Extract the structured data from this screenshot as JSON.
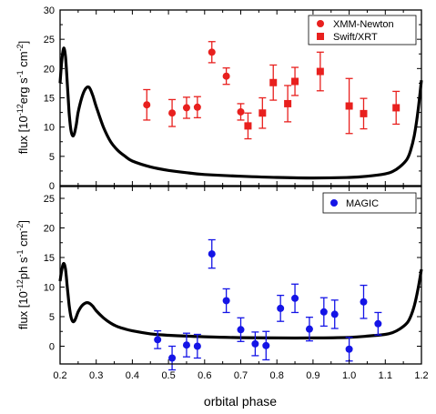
{
  "figure": {
    "x_axis": {
      "label": "orbital phase",
      "range": [
        0.2,
        1.2
      ],
      "ticks": [
        0.2,
        0.3,
        0.4,
        0.5,
        0.6,
        0.7,
        0.8,
        0.9,
        1.0,
        1.1,
        1.2
      ],
      "tick_labels": [
        "0.2",
        "0.3",
        "0.4",
        "0.5",
        "0.6",
        "0.7",
        "0.8",
        "0.9",
        "1.0",
        "1.1",
        "1.2"
      ]
    }
  },
  "chart_data": [
    {
      "type": "scatter",
      "panel": "top",
      "title": "",
      "xlabel": "orbital phase",
      "ylabel_text": "flux [10",
      "ylabel_sup": "-12",
      "ylabel_rest": "erg s",
      "ylabel_sup2": "-1",
      "ylabel_rest2": " cm",
      "ylabel_sup3": "-2",
      "ylabel_end": "]",
      "xlim": [
        0.2,
        1.2
      ],
      "ylim": [
        0,
        30
      ],
      "yticks": [
        0,
        5,
        10,
        15,
        20,
        25,
        30
      ],
      "ytick_labels": [
        "0",
        "5",
        "10",
        "15",
        "20",
        "25",
        "30"
      ],
      "legend_position": "top-right",
      "series": [
        {
          "name": "XMM-Newton",
          "marker": "circle",
          "color": "#e8201e",
          "points": [
            {
              "x": 0.44,
              "y": 13.8,
              "err": 2.6
            },
            {
              "x": 0.51,
              "y": 12.4,
              "err": 2.3
            },
            {
              "x": 0.55,
              "y": 13.3,
              "err": 1.8
            },
            {
              "x": 0.58,
              "y": 13.4,
              "err": 1.8
            },
            {
              "x": 0.62,
              "y": 22.8,
              "err": 1.8
            },
            {
              "x": 0.66,
              "y": 18.7,
              "err": 1.4
            },
            {
              "x": 0.7,
              "y": 12.6,
              "err": 1.4
            }
          ]
        },
        {
          "name": "Swift/XRT",
          "marker": "square",
          "color": "#e8201e",
          "points": [
            {
              "x": 0.72,
              "y": 10.2,
              "err": 2.2
            },
            {
              "x": 0.76,
              "y": 12.4,
              "err": 2.6
            },
            {
              "x": 0.79,
              "y": 17.6,
              "err": 3.0
            },
            {
              "x": 0.83,
              "y": 14.0,
              "err": 3.1
            },
            {
              "x": 0.85,
              "y": 17.8,
              "err": 2.4
            },
            {
              "x": 0.92,
              "y": 19.5,
              "err": 3.3
            },
            {
              "x": 1.0,
              "y": 13.6,
              "err": 4.7
            },
            {
              "x": 1.04,
              "y": 12.3,
              "err": 2.6
            },
            {
              "x": 1.13,
              "y": 13.3,
              "err": 2.8
            }
          ]
        }
      ],
      "model_curve": {
        "color": "#000000",
        "x": [
          0.2,
          0.205,
          0.21,
          0.215,
          0.22,
          0.225,
          0.23,
          0.235,
          0.24,
          0.245,
          0.25,
          0.26,
          0.27,
          0.28,
          0.29,
          0.3,
          0.32,
          0.34,
          0.36,
          0.38,
          0.4,
          0.45,
          0.5,
          0.55,
          0.6,
          0.7,
          0.8,
          0.9,
          1.0,
          1.05,
          1.1,
          1.12,
          1.14,
          1.16,
          1.17,
          1.18,
          1.19,
          1.2
        ],
        "y": [
          17.5,
          21.5,
          23.5,
          22.0,
          17.5,
          12.5,
          9.5,
          8.5,
          9.0,
          10.5,
          12.5,
          15.0,
          16.5,
          16.8,
          15.5,
          13.5,
          10.0,
          7.5,
          6.0,
          5.0,
          4.2,
          3.2,
          2.6,
          2.2,
          1.9,
          1.6,
          1.4,
          1.3,
          1.4,
          1.6,
          2.0,
          2.4,
          3.2,
          4.5,
          6.0,
          8.5,
          12.5,
          18.0
        ]
      }
    },
    {
      "type": "scatter",
      "panel": "bottom",
      "title": "",
      "xlabel": "orbital phase",
      "ylabel_text": "flux [10",
      "ylabel_sup": "-12",
      "ylabel_rest": "ph s",
      "ylabel_sup2": "-1",
      "ylabel_rest2": " cm",
      "ylabel_sup3": "-2",
      "ylabel_end": "]",
      "xlim": [
        0.2,
        1.2
      ],
      "ylim": [
        -3,
        27
      ],
      "yticks": [
        0,
        5,
        10,
        15,
        20,
        25
      ],
      "ytick_labels": [
        "0",
        "5",
        "10",
        "15",
        "20",
        "25"
      ],
      "legend_position": "top-right",
      "series": [
        {
          "name": "MAGIC",
          "marker": "circle",
          "color": "#1414e6",
          "points": [
            {
              "x": 0.47,
              "y": 1.1,
              "err": 1.5
            },
            {
              "x": 0.51,
              "y": -2.0,
              "err": 2.0
            },
            {
              "x": 0.55,
              "y": 0.2,
              "err": 2.0
            },
            {
              "x": 0.58,
              "y": 0.0,
              "err": 2.0
            },
            {
              "x": 0.62,
              "y": 15.6,
              "err": 2.4
            },
            {
              "x": 0.66,
              "y": 7.7,
              "err": 2.0
            },
            {
              "x": 0.7,
              "y": 2.8,
              "err": 2.0
            },
            {
              "x": 0.74,
              "y": 0.4,
              "err": 2.0
            },
            {
              "x": 0.77,
              "y": 0.1,
              "err": 2.4
            },
            {
              "x": 0.81,
              "y": 6.4,
              "err": 2.2
            },
            {
              "x": 0.85,
              "y": 8.1,
              "err": 2.4
            },
            {
              "x": 0.89,
              "y": 2.9,
              "err": 2.0
            },
            {
              "x": 0.93,
              "y": 5.8,
              "err": 2.4
            },
            {
              "x": 0.96,
              "y": 5.4,
              "err": 2.4
            },
            {
              "x": 1.0,
              "y": -0.5,
              "err": 2.0
            },
            {
              "x": 1.04,
              "y": 7.5,
              "err": 2.8
            },
            {
              "x": 1.08,
              "y": 3.8,
              "err": 1.9
            }
          ]
        }
      ],
      "model_curve": {
        "color": "#000000",
        "x": [
          0.2,
          0.205,
          0.21,
          0.215,
          0.22,
          0.225,
          0.23,
          0.235,
          0.24,
          0.245,
          0.25,
          0.26,
          0.27,
          0.28,
          0.29,
          0.3,
          0.32,
          0.34,
          0.36,
          0.38,
          0.4,
          0.45,
          0.5,
          0.55,
          0.6,
          0.7,
          0.8,
          0.9,
          1.0,
          1.05,
          1.1,
          1.12,
          1.14,
          1.16,
          1.17,
          1.18,
          1.19,
          1.2
        ],
        "y": [
          11.0,
          13.0,
          14.0,
          13.0,
          10.0,
          7.0,
          5.0,
          4.2,
          4.3,
          5.0,
          5.8,
          6.8,
          7.3,
          7.3,
          6.8,
          6.0,
          4.8,
          3.9,
          3.3,
          2.9,
          2.6,
          2.1,
          1.85,
          1.7,
          1.6,
          1.45,
          1.4,
          1.4,
          1.5,
          1.7,
          2.0,
          2.3,
          2.9,
          3.9,
          5.0,
          6.8,
          9.5,
          13.0
        ]
      }
    }
  ]
}
